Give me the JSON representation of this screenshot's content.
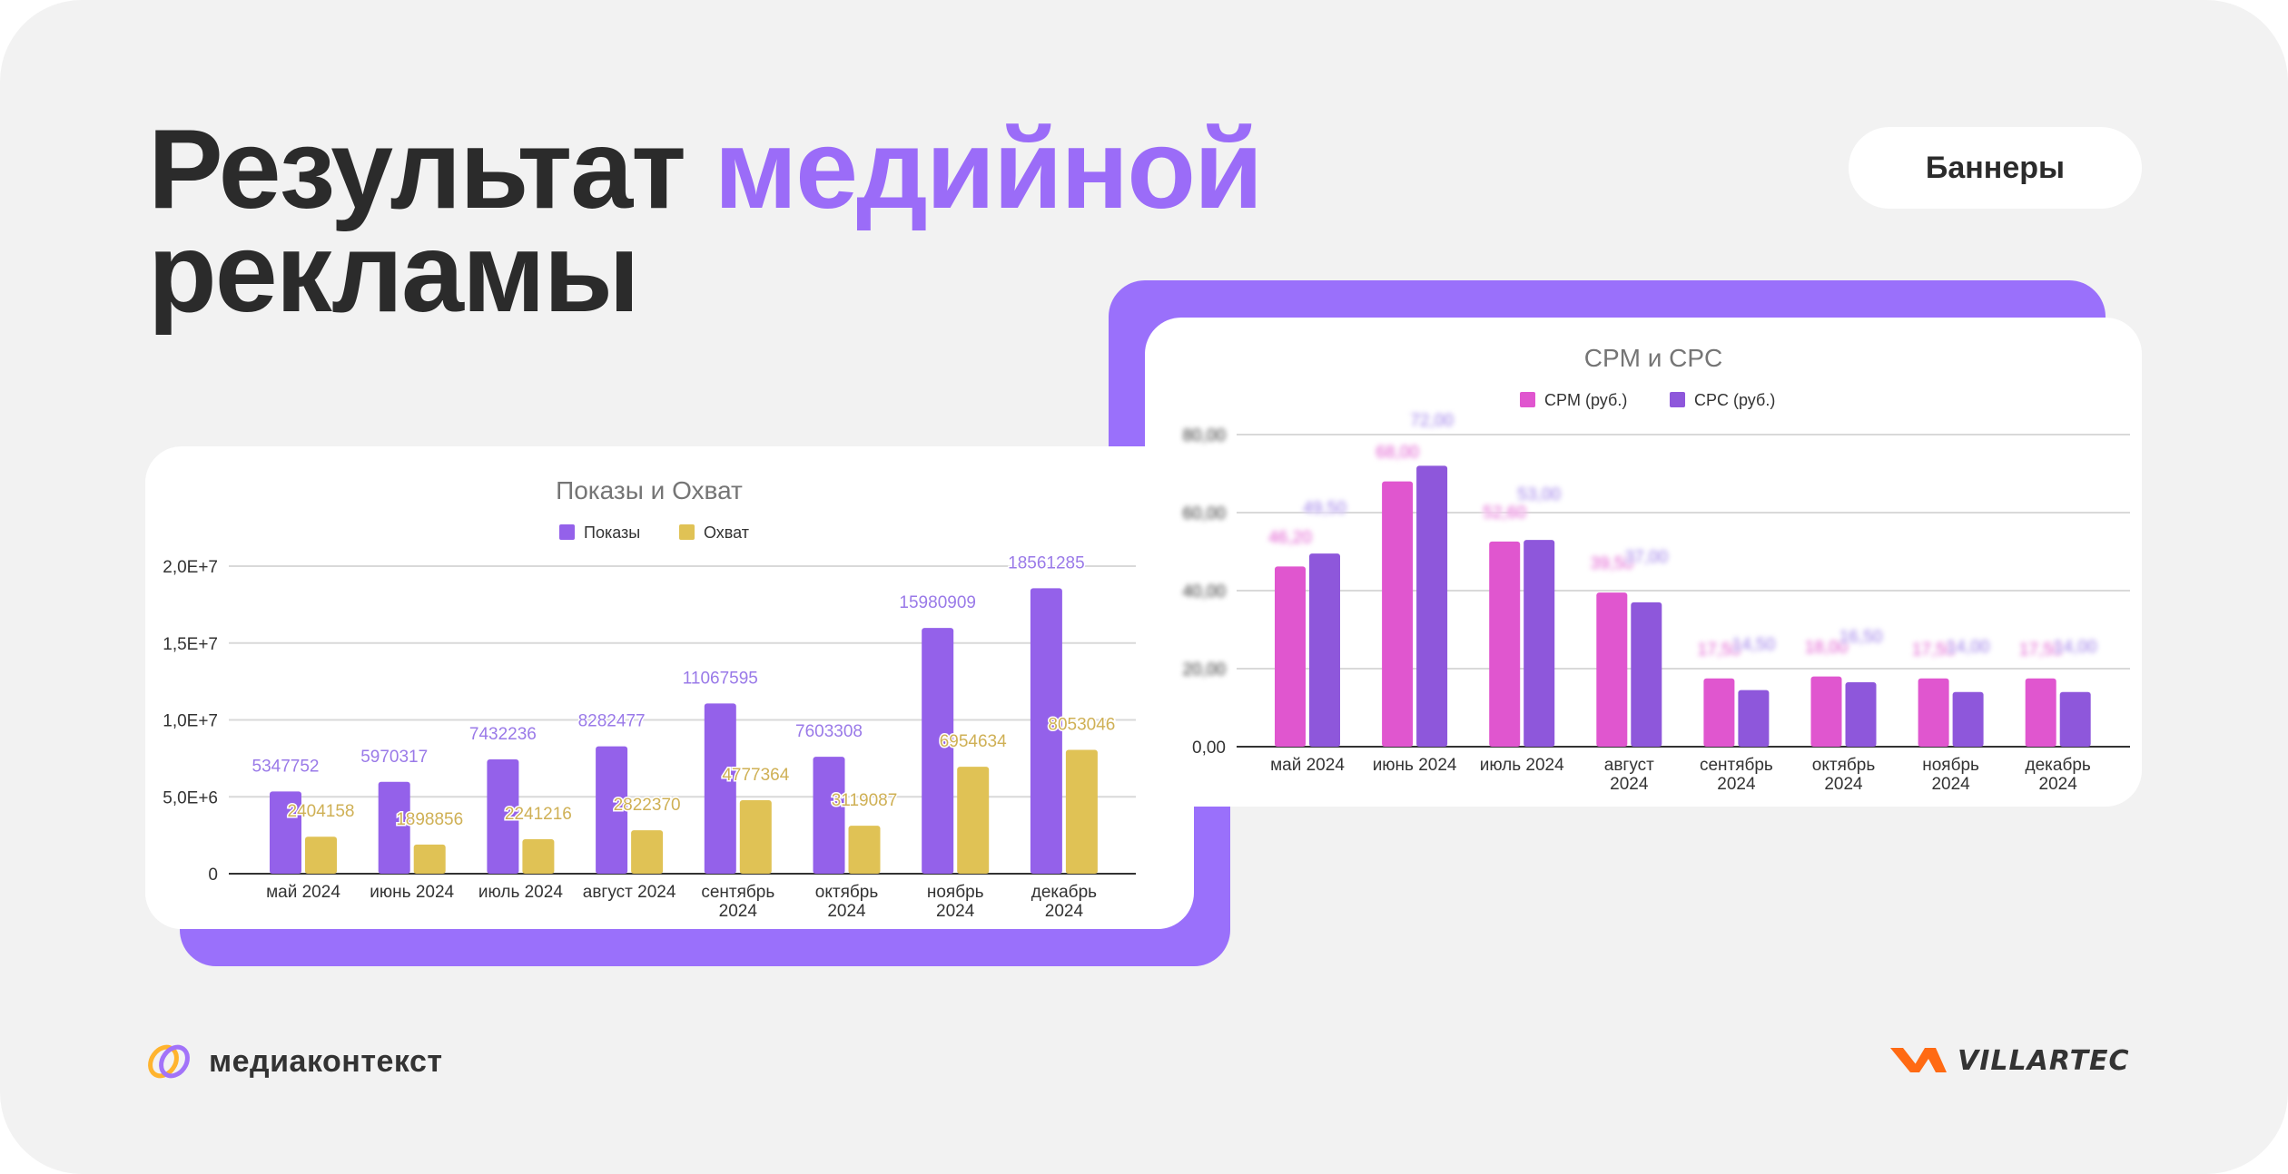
{
  "header": {
    "title_part1": "Результат ",
    "title_accent": "медийной",
    "title_part2": "рекламы",
    "badge": "Баннеры"
  },
  "colors": {
    "accent": "#9b6cf8",
    "backing": "#9a70fb",
    "impressions": "#9461ea",
    "reach": "#e0c255",
    "cpm": "#e056cf",
    "cpc": "#8e57db"
  },
  "footer": {
    "left_logo": "медиаконтекст",
    "right_logo": "VILLARTEC"
  },
  "chart_data": [
    {
      "type": "bar",
      "title": "Показы и Охват",
      "categories": [
        [
          "май 2024"
        ],
        [
          "июнь 2024"
        ],
        [
          "июль 2024"
        ],
        [
          "август 2024"
        ],
        [
          "сентябрь",
          "2024"
        ],
        [
          "октябрь",
          "2024"
        ],
        [
          "ноябрь",
          "2024"
        ],
        [
          "декабрь",
          "2024"
        ]
      ],
      "series": [
        {
          "name": "Показы",
          "values": [
            5347752,
            5970317,
            7432236,
            8282477,
            11067595,
            7603308,
            15980909,
            18561285
          ]
        },
        {
          "name": "Охват",
          "values": [
            2404158,
            1898856,
            2241216,
            2822370,
            4777364,
            3119087,
            6954634,
            8053046
          ]
        }
      ],
      "yticks": [
        0,
        5000000,
        10000000,
        15000000,
        20000000
      ],
      "ytick_labels": [
        "0",
        "5,0E+6",
        "1,0E+7",
        "1,5E+7",
        "2,0E+7"
      ],
      "ylim": [
        0,
        20000000
      ],
      "legend": "top",
      "grid": true
    },
    {
      "type": "bar",
      "title": "CPM и CPC",
      "categories": [
        [
          "май 2024"
        ],
        [
          "июнь 2024"
        ],
        [
          "июль 2024"
        ],
        [
          "август",
          "2024"
        ],
        [
          "сентябрь",
          "2024"
        ],
        [
          "октябрь",
          "2024"
        ],
        [
          "ноябрь",
          "2024"
        ],
        [
          "декабрь",
          "2024"
        ]
      ],
      "series": [
        {
          "name": "CPM (руб.)",
          "values": [
            46.2,
            68.0,
            52.6,
            39.5,
            17.5,
            18.0,
            17.5,
            17.5
          ]
        },
        {
          "name": "CPC (руб.)",
          "values": [
            49.5,
            72.0,
            53.0,
            37.0,
            14.5,
            16.5,
            14.0,
            14.0
          ]
        }
      ],
      "yticks": [
        0,
        20,
        40,
        60,
        80
      ],
      "ytick_labels": [
        "0,00",
        "20,00",
        "40,00",
        "60,00",
        "80,00"
      ],
      "ylim": [
        0,
        80
      ],
      "legend": "top",
      "grid": true
    }
  ]
}
